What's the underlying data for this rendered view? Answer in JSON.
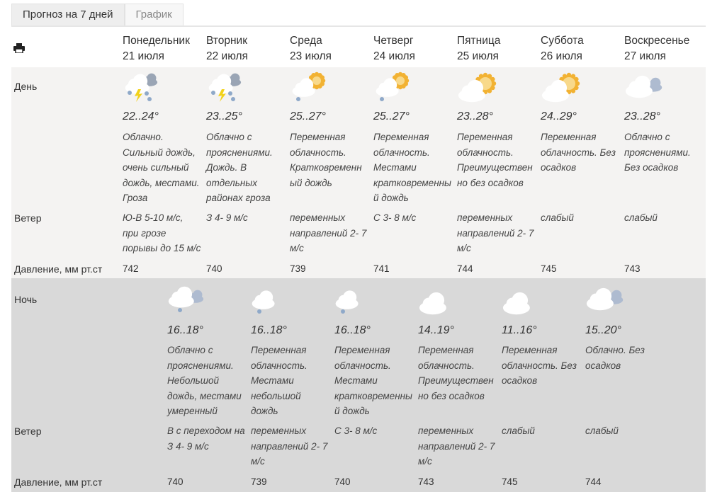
{
  "tabs": [
    {
      "label": "Прогноз на 7 дней",
      "active": true
    },
    {
      "label": "График",
      "active": false
    }
  ],
  "labels": {
    "day": "День",
    "night": "Ночь",
    "wind": "Ветер",
    "pressure": "Давление, мм рт.ст"
  },
  "days": [
    {
      "name": "Понедельник",
      "date": "21 июля"
    },
    {
      "name": "Вторник",
      "date": "22 июля"
    },
    {
      "name": "Среда",
      "date": "23 июля"
    },
    {
      "name": "Четверг",
      "date": "24 июля"
    },
    {
      "name": "Пятница",
      "date": "25 июля"
    },
    {
      "name": "Суббота",
      "date": "26 июля"
    },
    {
      "name": "Воскресенье",
      "date": "27 июля"
    }
  ],
  "day_forecast": [
    {
      "icon": "thunderstorm",
      "temp": "22..24°",
      "desc": "Облачно.\nСильный дождь,\nочень сильный\nдождь, местами.\nГроза",
      "wind": "Ю-В 5-10 м/с,\nпри грозе\nпорывы до 15 м/с",
      "pressure": "742"
    },
    {
      "icon": "thunderstorm",
      "temp": "23..25°",
      "desc": "Облачно с\nпрояснениями.\nДождь. В\nотдельных\nрайонах гроза",
      "wind": "З 4- 9 м/с",
      "pressure": "740"
    },
    {
      "icon": "sun-cloud-rain",
      "temp": "25..27°",
      "desc": "Переменная\nоблачность.\nКратковременн\nый дождь",
      "wind": "переменных\nнаправлений 2- 7\nм/с",
      "pressure": "739"
    },
    {
      "icon": "sun-cloud-rain",
      "temp": "25..27°",
      "desc": "Переменная\nоблачность.\nМестами\nкратковременны\nй дождь",
      "wind": "С 3- 8 м/с",
      "pressure": "741"
    },
    {
      "icon": "sun-cloud",
      "temp": "23..28°",
      "desc": "Переменная\nоблачность.\nПреимуществен\nно без осадков",
      "wind": "переменных\nнаправлений 2- 7\nм/с",
      "pressure": "744"
    },
    {
      "icon": "sun-cloud",
      "temp": "24..29°",
      "desc": "Переменная\nоблачность. Без\nосадков",
      "wind": "слабый",
      "pressure": "745"
    },
    {
      "icon": "cloudy",
      "temp": "23..28°",
      "desc": "Облачно с\nпрояснениями.\nБез осадков",
      "wind": "слабый",
      "pressure": "743"
    }
  ],
  "night_forecast": [
    {
      "icon": "cloudy-rain",
      "temp": "16..18°",
      "desc": "Облачно с\nпрояснениями.\nНебольшой\nдождь, местами\nумеренный",
      "wind": "В с переходом на\nЗ 4- 9 м/с",
      "pressure": "740"
    },
    {
      "icon": "moon-cloud-rain",
      "temp": "16..18°",
      "desc": "Переменная\nоблачность.\nМестами\nнебольшой\nдождь",
      "wind": "переменных\nнаправлений 2- 7\nм/с",
      "pressure": "739"
    },
    {
      "icon": "moon-cloud-rain",
      "temp": "16..18°",
      "desc": "Переменная\nоблачность.\nМестами\nкратковременны\nй дождь",
      "wind": "С 3- 8 м/с",
      "pressure": "740"
    },
    {
      "icon": "moon-cloud",
      "temp": "14..19°",
      "desc": "Переменная\nоблачность.\nПреимуществен\nно без осадков",
      "wind": "переменных\nнаправлений 2- 7\nм/с",
      "pressure": "743"
    },
    {
      "icon": "moon-cloud",
      "temp": "11..16°",
      "desc": "Переменная\nоблачность. Без\nосадков",
      "wind": "слабый",
      "pressure": "745"
    },
    {
      "icon": "cloudy",
      "temp": "15..20°",
      "desc": "Облачно. Без\nосадков",
      "wind": "слабый",
      "pressure": "744"
    }
  ],
  "colors": {
    "day_bg": "#f4f3f2",
    "night_bg": "#d9d9d9",
    "sun": "#f2b233",
    "moon": "#f3dc8a",
    "rain": "#8fa9c9",
    "lightning": "#f2d21a"
  }
}
